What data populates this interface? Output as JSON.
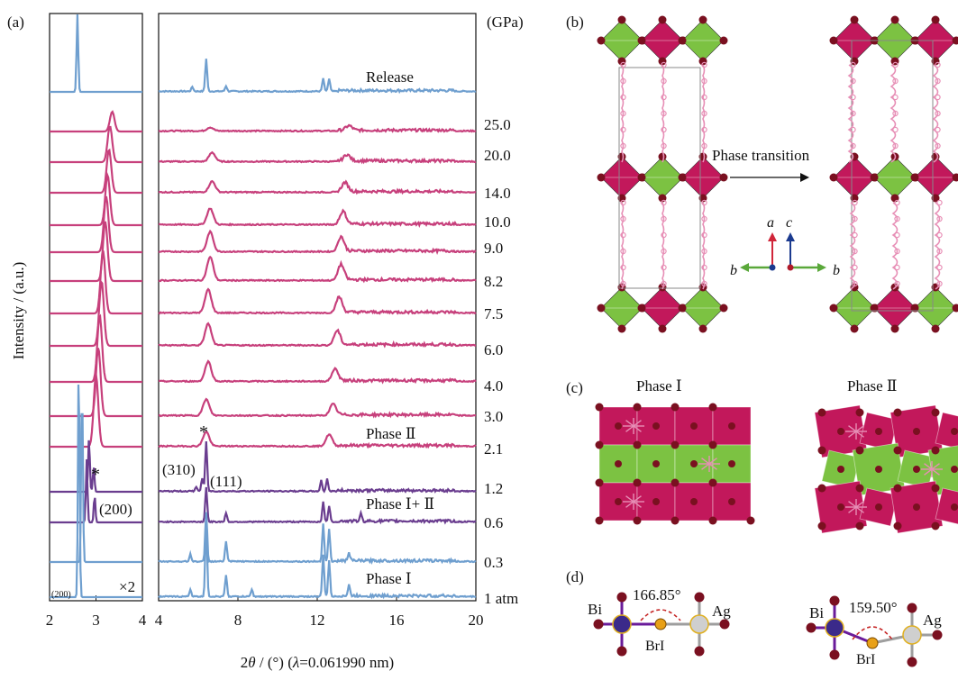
{
  "panel_labels": {
    "a": "(a)",
    "b": "(b)",
    "c": "(c)",
    "d": "(d)"
  },
  "chart_data": {
    "type": "line",
    "ylabel": "Intensity / (a.u.)",
    "xlabel": "2θ / (°) (λ=0.061990 nm)",
    "xlabel_parts": {
      "prefix": "2",
      "theta": "θ",
      "mid": " / (°) (",
      "lambda": "λ",
      "suffix": "=0.061990 nm)"
    },
    "pressure_unit": "(GPa)",
    "left_panel": {
      "xlim": [
        2,
        4
      ],
      "xticks": [
        "2",
        "3",
        "4"
      ],
      "scale_note": "×2",
      "peak_label": "(200)"
    },
    "right_panel": {
      "xlim": [
        4,
        20
      ],
      "xticks": [
        "4",
        "8",
        "12",
        "16",
        "20"
      ]
    },
    "colors": {
      "phase_I": "#6f9fcf",
      "phase_mix": "#6a3d8f",
      "phase_II": "#c7407c"
    },
    "pressures": [
      "Release",
      "25.0",
      "20.0",
      "14.0",
      "10.0",
      "9.0",
      "8.2",
      "7.5",
      "6.0",
      "4.0",
      "3.0",
      "2.1",
      "1.2",
      "0.6",
      "0.3",
      "1 atm"
    ],
    "series": [
      {
        "name": "Release",
        "phase": "I",
        "left_peaks": [
          [
            2.6,
            90
          ]
        ],
        "right_peaks": [
          [
            6.4,
            36
          ],
          [
            7.4,
            6
          ],
          [
            12.3,
            14
          ],
          [
            12.6,
            14
          ],
          [
            5.7,
            5
          ]
        ]
      },
      {
        "name": "25.0",
        "phase": "II",
        "left_peaks": [
          [
            3.35,
            22
          ]
        ],
        "right_peaks": [
          [
            6.6,
            4
          ],
          [
            13.6,
            5
          ]
        ]
      },
      {
        "name": "20.0",
        "phase": "II",
        "left_peaks": [
          [
            3.3,
            40
          ]
        ],
        "right_peaks": [
          [
            6.7,
            10
          ],
          [
            13.5,
            7
          ]
        ]
      },
      {
        "name": "14.0",
        "phase": "II",
        "left_peaks": [
          [
            3.28,
            48
          ]
        ],
        "right_peaks": [
          [
            6.7,
            12
          ],
          [
            13.4,
            10
          ]
        ]
      },
      {
        "name": "10.0",
        "phase": "II",
        "left_peaks": [
          [
            3.25,
            56
          ]
        ],
        "right_peaks": [
          [
            6.6,
            18
          ],
          [
            13.3,
            14
          ]
        ]
      },
      {
        "name": "9.0",
        "phase": "II",
        "left_peaks": [
          [
            3.22,
            62
          ]
        ],
        "right_peaks": [
          [
            6.6,
            22
          ],
          [
            13.2,
            16
          ]
        ]
      },
      {
        "name": "8.2",
        "phase": "II",
        "left_peaks": [
          [
            3.2,
            66
          ]
        ],
        "right_peaks": [
          [
            6.6,
            26
          ],
          [
            13.2,
            17
          ]
        ]
      },
      {
        "name": "7.5",
        "phase": "II",
        "left_peaks": [
          [
            3.15,
            70
          ]
        ],
        "right_peaks": [
          [
            6.5,
            26
          ],
          [
            13.1,
            17
          ]
        ]
      },
      {
        "name": "6.0",
        "phase": "II",
        "left_peaks": [
          [
            3.12,
            72
          ]
        ],
        "right_peaks": [
          [
            6.5,
            24
          ],
          [
            13.0,
            16
          ]
        ]
      },
      {
        "name": "4.0",
        "phase": "II",
        "left_peaks": [
          [
            3.08,
            74
          ]
        ],
        "right_peaks": [
          [
            6.5,
            22
          ],
          [
            12.9,
            14
          ]
        ]
      },
      {
        "name": "3.0",
        "phase": "II",
        "left_peaks": [
          [
            3.05,
            76
          ]
        ],
        "right_peaks": [
          [
            6.4,
            18
          ],
          [
            12.8,
            13
          ]
        ]
      },
      {
        "name": "2.1",
        "phase": "II",
        "left_peaks": [
          [
            3.0,
            80
          ]
        ],
        "right_peaks": [
          [
            6.4,
            16
          ],
          [
            12.6,
            13
          ]
        ]
      },
      {
        "name": "1.2",
        "phase": "I+II",
        "left_peaks": [
          [
            2.85,
            60
          ],
          [
            2.95,
            28
          ]
        ],
        "right_peaks": [
          [
            6.4,
            55
          ],
          [
            6.2,
            14
          ],
          [
            12.2,
            12
          ],
          [
            12.5,
            14
          ],
          [
            5.9,
            5
          ]
        ]
      },
      {
        "name": "0.6",
        "phase": "I+II",
        "left_peaks": [
          [
            2.8,
            70
          ],
          [
            2.97,
            30
          ]
        ],
        "right_peaks": [
          [
            6.4,
            38
          ],
          [
            7.4,
            10
          ],
          [
            12.3,
            22
          ],
          [
            12.6,
            18
          ],
          [
            14.2,
            8
          ]
        ]
      },
      {
        "name": "0.3",
        "phase": "I",
        "left_peaks": [
          [
            2.7,
            200
          ]
        ],
        "right_peaks": [
          [
            6.4,
            55
          ],
          [
            7.4,
            22
          ],
          [
            12.3,
            42
          ],
          [
            12.6,
            36
          ],
          [
            13.6,
            10
          ],
          [
            5.6,
            8
          ]
        ]
      },
      {
        "name": "1 atm",
        "phase": "I",
        "left_peaks": [
          [
            2.63,
            260
          ]
        ],
        "right_peaks": [
          [
            6.4,
            80
          ],
          [
            7.4,
            24
          ],
          [
            12.3,
            46
          ],
          [
            12.6,
            40
          ],
          [
            13.6,
            12
          ],
          [
            5.6,
            8
          ],
          [
            8.7,
            8
          ]
        ]
      }
    ],
    "annotations": {
      "release": "Release",
      "phase2": "Phase Ⅱ",
      "phase12": "Phase Ⅰ+ Ⅱ",
      "phase1": "Phase Ⅰ",
      "hkl_310": "(310)",
      "hkl_111": "(111)",
      "hkl_200": "(200)",
      "star": "*"
    }
  },
  "structure": {
    "b_transition_label": "Phase transition",
    "axis_a": "a",
    "axis_c": "c",
    "axis_b": "b",
    "c_phase1": "Phase Ⅰ",
    "c_phase2": "Phase Ⅱ",
    "d_bi": "Bi",
    "d_ag": "Ag",
    "d_br": "BrI",
    "d_angle1": "166.85°",
    "d_angle2": "159.50°",
    "colors": {
      "bi_oct": "#c2185b",
      "ag_oct": "#7cc242",
      "halide": "#7a1020",
      "organic": "#e78fb6"
    }
  }
}
